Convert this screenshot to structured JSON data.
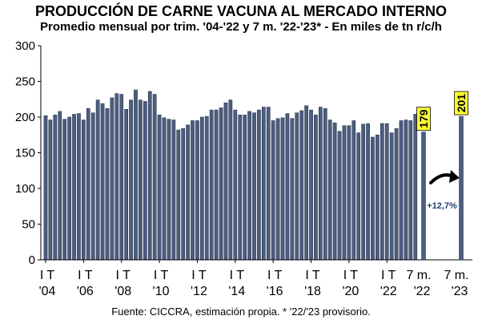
{
  "header": {
    "title": "PRODUCCIÓN DE CARNE VACUNA AL MERCADO INTERNO",
    "subtitle": "Promedio mensual por trim. '04-'22 y 7 m. '22-'23* - En miles de tn r/c/h"
  },
  "footer": {
    "source": "Fuente: CICCRA, estimación propia. * '22/'23 provisorio."
  },
  "chart_data": {
    "type": "bar",
    "title": "PRODUCCIÓN DE CARNE VACUNA AL MERCADO INTERNO",
    "subtitle": "Promedio mensual por trim. '04-'22 y 7 m. '22-'23* - En miles de tn r/c/h",
    "ylim": [
      0,
      300
    ],
    "yticks": [
      "0",
      "50",
      "100",
      "150",
      "200",
      "250",
      "300"
    ],
    "grid": false,
    "bar_color": "#4d5d80",
    "quarterly_values": [
      202,
      196,
      203,
      208,
      197,
      200,
      204,
      205,
      196,
      212,
      206,
      224,
      219,
      212,
      227,
      233,
      232,
      211,
      224,
      238,
      224,
      222,
      236,
      232,
      203,
      199,
      197,
      196,
      182,
      184,
      189,
      195,
      195,
      200,
      201,
      210,
      210,
      213,
      220,
      224,
      210,
      203,
      203,
      208,
      206,
      210,
      214,
      214,
      195,
      198,
      199,
      205,
      198,
      206,
      209,
      216,
      210,
      203,
      214,
      212,
      196,
      192,
      180,
      188,
      188,
      195,
      178,
      190,
      191,
      172,
      175,
      191,
      191,
      178,
      184,
      195,
      196,
      195,
      204
    ],
    "x_tick_labels": [
      {
        "l1": "I T",
        "l2": "'04",
        "q": 0
      },
      {
        "l1": "I T",
        "l2": "'06",
        "q": 8
      },
      {
        "l1": "I T",
        "l2": "'08",
        "q": 16
      },
      {
        "l1": "I T",
        "l2": "'10",
        "q": 24
      },
      {
        "l1": "I T",
        "l2": "'12",
        "q": 32
      },
      {
        "l1": "I T",
        "l2": "'14",
        "q": 40
      },
      {
        "l1": "I T",
        "l2": "'16",
        "q": 48
      },
      {
        "l1": "I T",
        "l2": "'18",
        "q": 56
      },
      {
        "l1": "I T",
        "l2": "'20",
        "q": 64
      },
      {
        "l1": "I T",
        "l2": "'22",
        "q": 72
      }
    ],
    "period_bars": [
      {
        "label_line1": "7 m.",
        "label_line2": "'22",
        "value": 179,
        "data_label": "179"
      },
      {
        "label_line1": "7 m.",
        "label_line2": "'23",
        "value": 201,
        "data_label": "201"
      }
    ],
    "data_label_bg": "#ffff33",
    "annotation": {
      "text": "+12,7%",
      "color": "#1f3f6f"
    }
  }
}
